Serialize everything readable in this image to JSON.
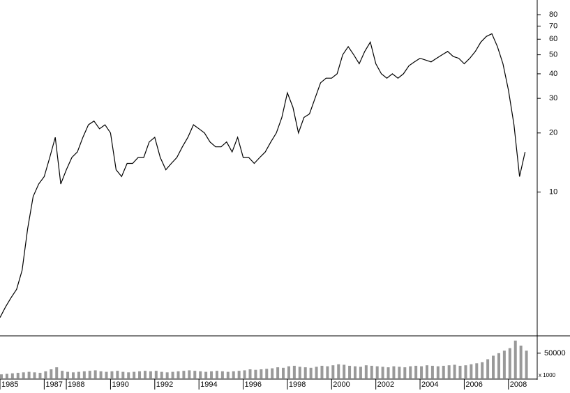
{
  "chart_data": {
    "type": "line",
    "log_scale": true,
    "color": "#000000",
    "x": [
      1985,
      1985.25,
      1985.5,
      1985.75,
      1986,
      1986.25,
      1986.5,
      1986.75,
      1987,
      1987.25,
      1987.5,
      1987.75,
      1988,
      1988.25,
      1988.5,
      1988.75,
      1989,
      1989.25,
      1989.5,
      1989.75,
      1990,
      1990.25,
      1990.5,
      1990.75,
      1991,
      1991.25,
      1991.5,
      1991.75,
      1992,
      1992.25,
      1992.5,
      1992.75,
      1993,
      1993.25,
      1993.5,
      1993.75,
      1994,
      1994.25,
      1994.5,
      1994.75,
      1995,
      1995.25,
      1995.5,
      1995.75,
      1996,
      1996.25,
      1996.5,
      1996.75,
      1997,
      1997.25,
      1997.5,
      1997.75,
      1998,
      1998.25,
      1998.5,
      1998.75,
      1999,
      1999.25,
      1999.5,
      1999.75,
      2000,
      2000.25,
      2000.5,
      2000.75,
      2001,
      2001.25,
      2001.5,
      2001.75,
      2002,
      2002.25,
      2002.5,
      2002.75,
      2003,
      2003.25,
      2003.5,
      2003.75,
      2004,
      2004.25,
      2004.5,
      2004.75,
      2005,
      2005.25,
      2005.5,
      2005.75,
      2006,
      2006.25,
      2006.5,
      2006.75,
      2007,
      2007.25,
      2007.5,
      2007.75,
      2008,
      2008.25,
      2008.5,
      2008.75
    ],
    "values": [
      2.3,
      2.6,
      2.9,
      3.2,
      4.0,
      6.5,
      9.5,
      11,
      12,
      15,
      19,
      11,
      13,
      15,
      16,
      19,
      22,
      23,
      21,
      22,
      20,
      13,
      12,
      14,
      14,
      15,
      15,
      18,
      19,
      15,
      13,
      14,
      15,
      17,
      19,
      22,
      21,
      20,
      18,
      17,
      17,
      18,
      16,
      19,
      15,
      15,
      14,
      15,
      16,
      18,
      20,
      24,
      32,
      27,
      20,
      24,
      25,
      30,
      36,
      38,
      38,
      40,
      50,
      55,
      50,
      45,
      52,
      58,
      45,
      40,
      38,
      40,
      38,
      40,
      44,
      46,
      48,
      47,
      46,
      48,
      50,
      52,
      49,
      48,
      45,
      48,
      52,
      58,
      62,
      64,
      55,
      45,
      33,
      22,
      12,
      16
    ],
    "xlim": [
      1985,
      2009.3
    ],
    "xticks": [
      1985,
      1987,
      1988,
      1990,
      1992,
      1994,
      1996,
      1998,
      2000,
      2002,
      2004,
      2006,
      2008
    ],
    "ylim": [
      1.87,
      95
    ],
    "yticks": [
      10,
      20,
      30,
      40,
      50,
      60,
      70,
      80
    ],
    "volume": {
      "color": "#999999",
      "unit_label": "x 1000",
      "values": [
        8000,
        9000,
        10000,
        11000,
        12000,
        13000,
        12000,
        11000,
        14000,
        18000,
        22000,
        15000,
        13000,
        12000,
        13000,
        14000,
        15000,
        16000,
        14000,
        13000,
        14000,
        15000,
        13000,
        12000,
        13000,
        14000,
        15000,
        14000,
        15000,
        13000,
        12000,
        13000,
        14000,
        15000,
        16000,
        15000,
        14000,
        13000,
        14000,
        15000,
        14000,
        13000,
        14000,
        15000,
        16000,
        18000,
        17000,
        18000,
        19000,
        20000,
        22000,
        21000,
        24000,
        25000,
        23000,
        22000,
        21000,
        23000,
        25000,
        24000,
        26000,
        28000,
        27000,
        25000,
        24000,
        23000,
        26000,
        25000,
        24000,
        23000,
        22000,
        24000,
        23000,
        22000,
        24000,
        25000,
        24000,
        26000,
        25000,
        24000,
        25000,
        26000,
        27000,
        25000,
        26000,
        28000,
        30000,
        32000,
        38000,
        45000,
        50000,
        55000,
        60000,
        75000,
        65000,
        55000
      ],
      "ylim": [
        0,
        83000
      ],
      "yticks": [
        50000
      ]
    }
  }
}
